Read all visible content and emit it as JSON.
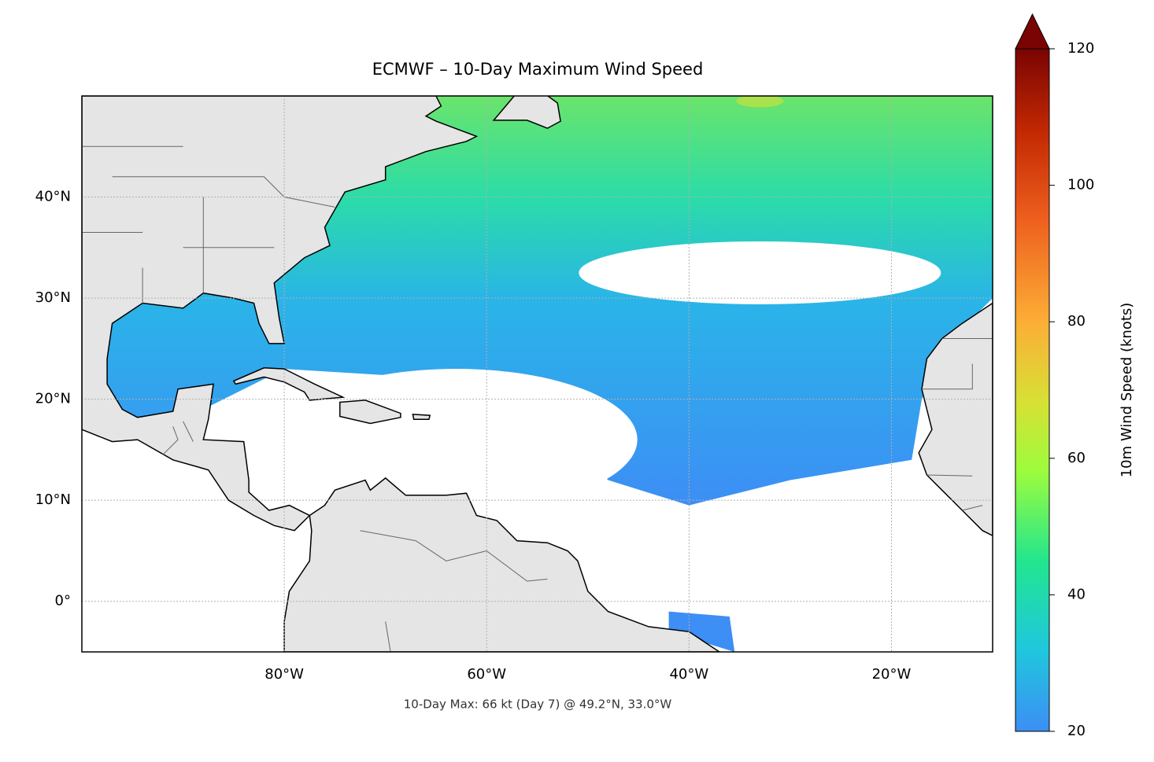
{
  "chart_data": {
    "type": "map",
    "title": "ECMWF – 10-Day Maximum Wind Speed",
    "annotation": "10-Day Max: 66 kt (Day 7) @ 49.2°N, 33.0°W",
    "xlim": [
      -100,
      -10
    ],
    "ylim": [
      -5,
      50
    ],
    "xticks": [
      {
        "value": -80,
        "label": "80°W"
      },
      {
        "value": -60,
        "label": "60°W"
      },
      {
        "value": -40,
        "label": "40°W"
      },
      {
        "value": -20,
        "label": "20°W"
      }
    ],
    "yticks": [
      {
        "value": 0,
        "label": "0°"
      },
      {
        "value": 10,
        "label": "10°N"
      },
      {
        "value": 20,
        "label": "20°N"
      },
      {
        "value": 30,
        "label": "30°N"
      },
      {
        "value": 40,
        "label": "40°N"
      }
    ],
    "grid": true,
    "colorbar": {
      "label": "10m Wind Speed (knots)",
      "lim": [
        20,
        120
      ],
      "ticks": [
        20,
        40,
        60,
        80,
        100,
        120
      ],
      "extend": "max"
    }
  }
}
